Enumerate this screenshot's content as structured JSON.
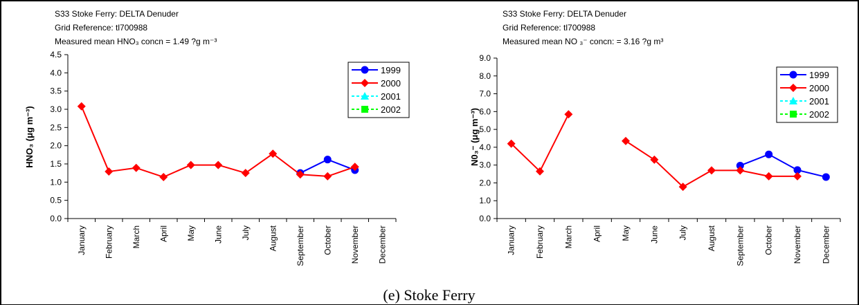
{
  "caption": "(e) Stoke Ferry",
  "chart_data": [
    {
      "type": "line",
      "header": [
        "S33 Stoke Ferry: DELTA Denuder",
        "Grid Reference: tl700988",
        "Measured mean HNO₃ concn  = 1.49 ?g m⁻³"
      ],
      "ylabel": "HNO₃ (μg m⁻³)",
      "xlabel": "",
      "categories": [
        "January",
        "February",
        "March",
        "April",
        "May",
        "June",
        "July",
        "August",
        "September",
        "October",
        "November",
        "December"
      ],
      "ylim": [
        0,
        4.5
      ],
      "yticks": [
        "0.0",
        "0.5",
        "1.0",
        "1.5",
        "2.0",
        "2.5",
        "3.0",
        "3.5",
        "4.0",
        "4.5"
      ],
      "grid": false,
      "legend": "top-right",
      "series": [
        {
          "name": "1999",
          "color": "#0000ff",
          "marker": "circle",
          "dashed": false,
          "values": [
            null,
            null,
            null,
            null,
            null,
            null,
            null,
            null,
            1.25,
            1.62,
            1.33,
            null
          ]
        },
        {
          "name": "2000",
          "color": "#ff0000",
          "marker": "diamond",
          "dashed": false,
          "values": [
            3.08,
            1.29,
            1.39,
            1.14,
            1.47,
            1.47,
            1.25,
            1.78,
            1.21,
            1.16,
            1.42,
            null
          ]
        },
        {
          "name": "2001",
          "color": "#00ffff",
          "marker": "triangle",
          "dashed": true,
          "values": [
            null,
            null,
            null,
            null,
            null,
            null,
            null,
            null,
            null,
            null,
            null,
            null
          ]
        },
        {
          "name": "2002",
          "color": "#00ff00",
          "marker": "square",
          "dashed": true,
          "values": [
            null,
            null,
            null,
            null,
            null,
            null,
            null,
            null,
            null,
            null,
            null,
            null
          ]
        }
      ]
    },
    {
      "type": "line",
      "header": [
        "S33 Stoke Ferry: DELTA Denuder",
        "Grid Reference: tl700988",
        "Measured mean NO ₃⁻ concn:  =  3.16   ?g m³"
      ],
      "ylabel": "N0₃⁻ (μg m⁻³)",
      "xlabel": "",
      "categories": [
        "January",
        "February",
        "March",
        "April",
        "May",
        "June",
        "July",
        "August",
        "September",
        "October",
        "November",
        "December"
      ],
      "ylim": [
        0,
        9
      ],
      "yticks": [
        "0.0",
        "1.0",
        "2.0",
        "3.0",
        "4.0",
        "5.0",
        "6.0",
        "7.0",
        "8.0",
        "9.0"
      ],
      "grid": false,
      "legend": "top-right",
      "series": [
        {
          "name": "1999",
          "color": "#0000ff",
          "marker": "circle",
          "dashed": false,
          "values": [
            null,
            null,
            null,
            null,
            null,
            null,
            null,
            null,
            2.97,
            3.6,
            2.72,
            2.33
          ]
        },
        {
          "name": "2000",
          "color": "#ff0000",
          "marker": "diamond",
          "dashed": false,
          "values": [
            4.2,
            2.65,
            5.85,
            null,
            4.35,
            3.3,
            1.78,
            2.7,
            2.7,
            2.37,
            2.37,
            null
          ]
        },
        {
          "name": "2001",
          "color": "#00ffff",
          "marker": "triangle",
          "dashed": true,
          "values": [
            null,
            null,
            null,
            null,
            null,
            null,
            null,
            null,
            null,
            null,
            null,
            null
          ]
        },
        {
          "name": "2002",
          "color": "#00ff00",
          "marker": "square",
          "dashed": true,
          "values": [
            null,
            null,
            null,
            null,
            null,
            null,
            null,
            null,
            null,
            null,
            null,
            null
          ]
        }
      ]
    }
  ]
}
